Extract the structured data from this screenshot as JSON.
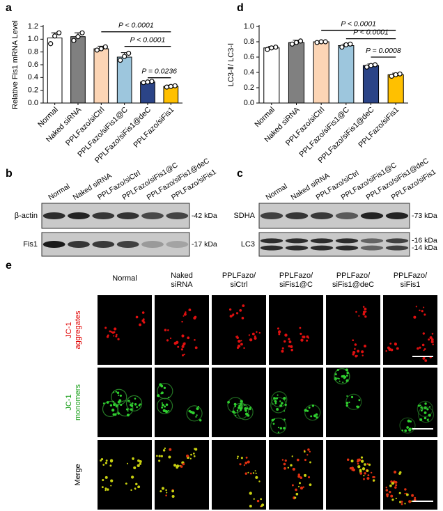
{
  "chart_data": [
    {
      "type": "bar",
      "panel": "a",
      "y_label": "Relative Fis1 mRNA Level",
      "categories": [
        "Normal",
        "Naked siRNA",
        "PPLFazo/siCtrl",
        "PPLFazo/siFis1@C",
        "PPLFazo/siFis1@deC",
        "PPLFazo/siFis1"
      ],
      "values": [
        1.02,
        1.04,
        0.85,
        0.72,
        0.33,
        0.26
      ],
      "errors": [
        0.08,
        0.06,
        0.04,
        0.07,
        0.01,
        0.02
      ],
      "points": [
        [
          0.93,
          1.05,
          1.1
        ],
        [
          0.98,
          1.04,
          1.1
        ],
        [
          0.83,
          0.85,
          0.88
        ],
        [
          0.67,
          0.73,
          0.78
        ],
        [
          0.32,
          0.33,
          0.34
        ],
        [
          0.25,
          0.26,
          0.27
        ]
      ],
      "colors": [
        "#ffffff",
        "#808080",
        "#fcd5b5",
        "#9dc6dd",
        "#2b4487",
        "#ffc000"
      ],
      "ylim": [
        0,
        1.2
      ],
      "yticks": [
        {
          "value": 0,
          "label": "0.0"
        },
        0.2,
        0.4,
        0.6,
        0.8,
        {
          "value": 1,
          "label": "1.0"
        },
        1.2
      ],
      "annotations": [
        "P < 0.0001",
        "P < 0.0001",
        "P = 0.0236"
      ]
    },
    {
      "type": "bar",
      "panel": "d",
      "y_label": "LC3-Ⅱ/ LC3-Ⅰ",
      "categories": [
        "Normal",
        "Naked siRNA",
        "PPLFazo/siCtrl",
        "PPLFazo/siFis1@C",
        "PPLFazo/siFis1@deC",
        "PPLFazo/siFis1"
      ],
      "values": [
        0.72,
        0.79,
        0.8,
        0.75,
        0.49,
        0.37
      ],
      "errors": [
        0.02,
        0.03,
        0.01,
        0.02,
        0.02,
        0.02
      ],
      "points": [
        [
          0.7,
          0.72,
          0.73
        ],
        [
          0.77,
          0.79,
          0.81
        ],
        [
          0.79,
          0.8,
          0.8
        ],
        [
          0.73,
          0.76,
          0.77
        ],
        [
          0.47,
          0.49,
          0.5
        ],
        [
          0.35,
          0.37,
          0.38
        ]
      ],
      "colors": [
        "#ffffff",
        "#808080",
        "#fcd5b5",
        "#9dc6dd",
        "#2b4487",
        "#ffc000"
      ],
      "ylim": [
        0,
        1
      ],
      "yticks": [
        {
          "value": 0,
          "label": "0.0"
        },
        0.2,
        0.4,
        0.6,
        0.8,
        {
          "value": 1,
          "label": "1.0"
        }
      ],
      "annotations": [
        "P < 0.0001",
        "P < 0.0001",
        "P = 0.0008"
      ]
    }
  ],
  "blots": [
    {
      "panel": "b",
      "lanes": [
        "Normal",
        "Naked siRNA",
        "PPLFazo/siCtrl",
        "PPLFazo/siFis1@C",
        "PPLFazo/siFis1@deC",
        "PPLFazo/siFis1"
      ],
      "rows": [
        {
          "name": "β-actin",
          "sizes": [
            "-42 kDa"
          ]
        },
        {
          "name": "Fis1",
          "sizes": [
            "-17 kDa"
          ]
        }
      ]
    },
    {
      "panel": "c",
      "lanes": [
        "Normal",
        "Naked siRNA",
        "PPLFazo/siCtrl",
        "PPLFazo/siFis1@C",
        "PPLFazo/siFis1@deC",
        "PPLFazo/siFis1"
      ],
      "rows": [
        {
          "name": "SDHA",
          "sizes": [
            "-73 kDa"
          ]
        },
        {
          "name": "LC3",
          "sizes": [
            "-16 kDa",
            "-14 kDa"
          ]
        }
      ]
    }
  ],
  "imaging": {
    "panel": "e",
    "columns": [
      [
        "Normal"
      ],
      [
        "Naked",
        "siRNA"
      ],
      [
        "PPLFazo/",
        "siCtrl"
      ],
      [
        "PPLFazo/",
        "siFis1@C"
      ],
      [
        "PPLFazo/",
        "siFis1@deC"
      ],
      [
        "PPLFazo/",
        "siFis1"
      ]
    ],
    "rows": [
      [
        "JC-1",
        "aggregates"
      ],
      [
        "JC-1",
        "monomers"
      ],
      [
        "Merge"
      ]
    ]
  }
}
